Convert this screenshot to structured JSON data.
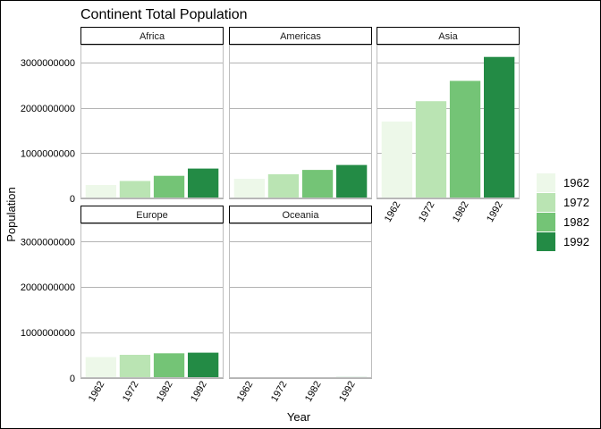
{
  "chart_data": {
    "type": "bar",
    "title": "Continent Total Population",
    "xlabel": "Year",
    "ylabel": "Population",
    "ylim": [
      0,
      3400000000
    ],
    "y_ticks": [
      0,
      1000000000,
      2000000000,
      3000000000
    ],
    "y_tick_labels": [
      "0",
      "1000000000",
      "2000000000",
      "3000000000"
    ],
    "categories": [
      "1962",
      "1972",
      "1982",
      "1992"
    ],
    "legend": {
      "position": "right",
      "entries": [
        "1962",
        "1972",
        "1982",
        "1992"
      ]
    },
    "colors": [
      "#edf8e9",
      "#bae4b3",
      "#74c476",
      "#238b45"
    ],
    "grid": true,
    "facets": [
      {
        "label": "Africa",
        "values": [
          296000000,
          385000000,
          500000000,
          660000000
        ]
      },
      {
        "label": "Americas",
        "values": [
          433000000,
          534000000,
          630000000,
          739000000
        ]
      },
      {
        "label": "Asia",
        "values": [
          1700000000,
          2150000000,
          2600000000,
          3130000000
        ]
      },
      {
        "label": "Europe",
        "values": [
          461000000,
          511000000,
          544000000,
          558000000
        ]
      },
      {
        "label": "Oceania",
        "values": [
          13000000,
          16000000,
          18000000,
          21000000
        ]
      }
    ]
  }
}
